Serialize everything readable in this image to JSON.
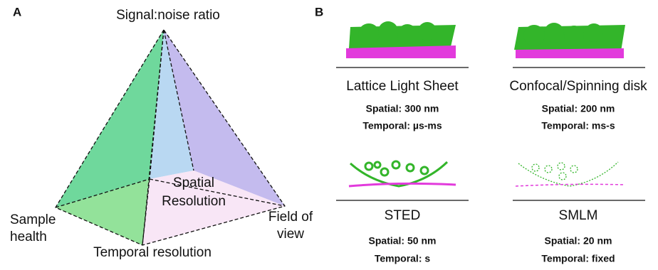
{
  "panel_a": {
    "label": "A",
    "apex": "Signal:noise ratio",
    "center": [
      "Spatial",
      "Resolution"
    ],
    "left": [
      "Sample",
      "health"
    ],
    "right": [
      "Field of",
      "view"
    ],
    "bottom": "Temporal resolution"
  },
  "panel_b": {
    "label": "B",
    "methods": [
      {
        "name": "Lattice Light Sheet",
        "spatial": "Spatial: 300 nm",
        "temporal": "Temporal: µs-ms"
      },
      {
        "name": "Confocal/Spinning disk",
        "spatial": "Spatial: 200 nm",
        "temporal": "Temporal: ms-s"
      },
      {
        "name": "STED",
        "spatial": "Spatial: 50 nm",
        "temporal": "Temporal: s"
      },
      {
        "name": "SMLM",
        "spatial": "Spatial: 20 nm",
        "temporal": "Temporal: fixed"
      }
    ]
  }
}
